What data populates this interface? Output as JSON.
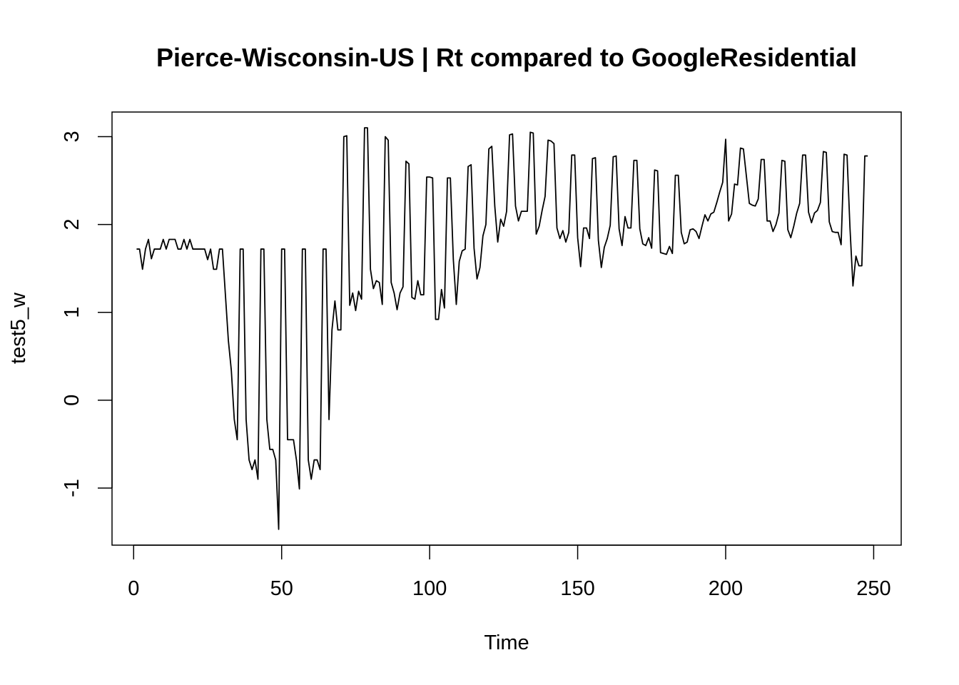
{
  "chart_data": {
    "type": "line",
    "title": "Pierce-Wisconsin-US | Rt compared to GoogleResidential",
    "xlabel": "Time",
    "ylabel": "test5_w",
    "xlim": [
      -7.3,
      259.3
    ],
    "ylim": [
      -1.65,
      3.28
    ],
    "x_ticks": [
      0,
      50,
      100,
      150,
      200,
      250
    ],
    "y_ticks": [
      -1,
      0,
      1,
      2,
      3
    ],
    "grid": false,
    "legend": "none",
    "line_color": "#000000",
    "series": [
      {
        "x": [
          1,
          2,
          3,
          4,
          5,
          6,
          7,
          8,
          9,
          10,
          11,
          12,
          13,
          14,
          15,
          16,
          17,
          18,
          19,
          20,
          21,
          22,
          23,
          24,
          25,
          26,
          27,
          28,
          29,
          30,
          31,
          32,
          33,
          34,
          35,
          36,
          37,
          38,
          39,
          40,
          41,
          42,
          43,
          44,
          45,
          46,
          47,
          48,
          49,
          50,
          51,
          52,
          53,
          54,
          55,
          56,
          57,
          58,
          59,
          60,
          61,
          62,
          63,
          64,
          65,
          66,
          67,
          68,
          69,
          70,
          71,
          72,
          73,
          74,
          75,
          76,
          77,
          78,
          79,
          80,
          81,
          82,
          83,
          84,
          85,
          86,
          87,
          88,
          89,
          90,
          91,
          92,
          93,
          94,
          95,
          96,
          97,
          98,
          99,
          100,
          101,
          102,
          103,
          104,
          105,
          106,
          107,
          108,
          109,
          110,
          111,
          112,
          113,
          114,
          115,
          116,
          117,
          118,
          119,
          120,
          121,
          122,
          123,
          124,
          125,
          126,
          127,
          128,
          129,
          130,
          131,
          132,
          133,
          134,
          135,
          136,
          137,
          138,
          139,
          140,
          141,
          142,
          143,
          144,
          145,
          146,
          147,
          148,
          149,
          150,
          151,
          152,
          153,
          154,
          155,
          156,
          157,
          158,
          159,
          160,
          161,
          162,
          163,
          164,
          165,
          166,
          167,
          168,
          169,
          170,
          171,
          172,
          173,
          174,
          175,
          176,
          177,
          178,
          179,
          180,
          181,
          182,
          183,
          184,
          185,
          186,
          187,
          188,
          189,
          190,
          191,
          192,
          193,
          194,
          195,
          196,
          197,
          198,
          199,
          200,
          201,
          202,
          203,
          204,
          205,
          206,
          207,
          208,
          209,
          210,
          211,
          212,
          213,
          214,
          215,
          216,
          217,
          218,
          219,
          220,
          221,
          222,
          223,
          224,
          225,
          226,
          227,
          228,
          229,
          230,
          231,
          232,
          233,
          234,
          235,
          236,
          237,
          238,
          239,
          240,
          241,
          242,
          243,
          244,
          245,
          246,
          247,
          248
        ],
        "values": [
          1.72,
          1.72,
          1.49,
          1.72,
          1.83,
          1.61,
          1.72,
          1.72,
          1.72,
          1.83,
          1.72,
          1.83,
          1.83,
          1.83,
          1.72,
          1.72,
          1.83,
          1.72,
          1.83,
          1.72,
          1.72,
          1.72,
          1.72,
          1.72,
          1.6,
          1.72,
          1.49,
          1.49,
          1.72,
          1.72,
          1.2,
          0.68,
          0.34,
          -0.22,
          -0.45,
          1.72,
          1.72,
          -0.22,
          -0.68,
          -0.79,
          -0.68,
          -0.9,
          1.72,
          1.72,
          -0.22,
          -0.56,
          -0.56,
          -0.68,
          -1.47,
          1.72,
          1.72,
          -0.45,
          -0.45,
          -0.45,
          -0.68,
          -1.01,
          1.72,
          1.72,
          -0.68,
          -0.9,
          -0.68,
          -0.68,
          -0.79,
          1.72,
          1.72,
          -0.22,
          0.8,
          1.13,
          0.8,
          0.8,
          3.0,
          3.01,
          1.08,
          1.22,
          1.02,
          1.24,
          1.15,
          3.1,
          3.1,
          1.49,
          1.27,
          1.36,
          1.34,
          1.09,
          3.0,
          2.96,
          1.34,
          1.22,
          1.03,
          1.22,
          1.29,
          2.72,
          2.69,
          1.17,
          1.15,
          1.36,
          1.2,
          1.2,
          2.54,
          2.54,
          2.53,
          0.92,
          0.92,
          1.26,
          1.05,
          2.53,
          2.53,
          1.6,
          1.09,
          1.58,
          1.7,
          1.72,
          2.66,
          2.68,
          1.73,
          1.38,
          1.51,
          1.87,
          2.0,
          2.86,
          2.89,
          2.21,
          1.8,
          2.06,
          1.98,
          2.15,
          3.02,
          3.03,
          2.21,
          2.04,
          2.15,
          2.15,
          2.15,
          3.05,
          3.04,
          1.89,
          1.98,
          2.16,
          2.32,
          2.96,
          2.95,
          2.92,
          1.96,
          1.84,
          1.93,
          1.8,
          1.91,
          2.79,
          2.79,
          1.85,
          1.52,
          1.96,
          1.96,
          1.84,
          2.75,
          2.76,
          1.82,
          1.51,
          1.74,
          1.84,
          1.99,
          2.77,
          2.78,
          1.95,
          1.76,
          2.09,
          1.96,
          1.96,
          2.73,
          2.73,
          1.95,
          1.78,
          1.76,
          1.85,
          1.73,
          2.62,
          2.61,
          1.68,
          1.67,
          1.66,
          1.75,
          1.67,
          2.56,
          2.56,
          1.91,
          1.78,
          1.8,
          1.94,
          1.95,
          1.92,
          1.84,
          1.98,
          2.11,
          2.04,
          2.12,
          2.14,
          2.25,
          2.37,
          2.48,
          2.97,
          2.04,
          2.12,
          2.46,
          2.45,
          2.87,
          2.86,
          2.55,
          2.24,
          2.22,
          2.21,
          2.29,
          2.74,
          2.74,
          2.04,
          2.04,
          1.92,
          2.0,
          2.13,
          2.73,
          2.72,
          1.94,
          1.85,
          1.98,
          2.13,
          2.24,
          2.79,
          2.79,
          2.14,
          2.02,
          2.13,
          2.16,
          2.25,
          2.83,
          2.82,
          2.03,
          1.92,
          1.91,
          1.91,
          1.77,
          2.8,
          2.79,
          1.96,
          1.3,
          1.64,
          1.53,
          1.53,
          2.78,
          2.78
        ]
      }
    ]
  }
}
